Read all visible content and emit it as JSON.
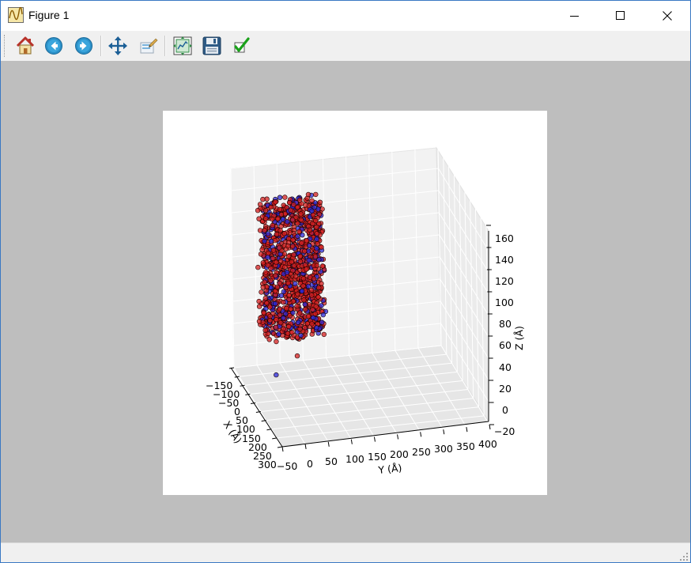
{
  "window": {
    "title": "Figure 1"
  },
  "title_controls": {
    "minimize_icon": "minimize-icon",
    "maximize_icon": "maximize-icon",
    "close_icon": "close-icon"
  },
  "toolbar": {
    "buttons": [
      {
        "name": "home-button",
        "icon": "home-icon"
      },
      {
        "name": "back-button",
        "icon": "back-arrow-icon"
      },
      {
        "name": "forward-button",
        "icon": "forward-arrow-icon"
      },
      {
        "name": "pan-button",
        "icon": "move-arrows-icon"
      },
      {
        "name": "zoom-button",
        "icon": "zoom-rect-icon"
      },
      {
        "name": "subplots-button",
        "icon": "subplots-icon"
      },
      {
        "name": "save-button",
        "icon": "floppy-disk-icon"
      },
      {
        "name": "customize-button",
        "icon": "checkmark-icon"
      }
    ]
  },
  "colors": {
    "red_atoms": "#d62020",
    "blue_atoms": "#2a2ad8",
    "canvas_bg": "#bebebe",
    "pane_bg": "#f2f2f2"
  },
  "chart_data": {
    "type": "scatter",
    "projection": "3d",
    "xlabel": "X (Å)",
    "ylabel": "Y (Å)",
    "zlabel": "Z (Å)",
    "x_ticks": [
      "−150",
      "−100",
      "−50",
      "0",
      "50",
      "100",
      "150",
      "200",
      "250",
      "300"
    ],
    "y_ticks": [
      "−50",
      "0",
      "50",
      "100",
      "150",
      "200",
      "250",
      "300",
      "350",
      "400"
    ],
    "z_ticks": [
      "−20",
      "0",
      "20",
      "40",
      "60",
      "80",
      "100",
      "120",
      "140",
      "160"
    ],
    "xlim": [
      -150,
      300
    ],
    "ylim": [
      -50,
      400
    ],
    "zlim": [
      -20,
      160
    ],
    "grid": true,
    "series": [
      {
        "color": "#d62020",
        "count": 900,
        "x_range": [
          -40,
          40
        ],
        "y_range": [
          -20,
          110
        ],
        "z_range": [
          30,
          150
        ]
      },
      {
        "color": "#2a2ad8",
        "count": 280,
        "x_range": [
          -40,
          40
        ],
        "y_range": [
          -20,
          110
        ],
        "z_range": [
          30,
          150
        ]
      }
    ]
  }
}
